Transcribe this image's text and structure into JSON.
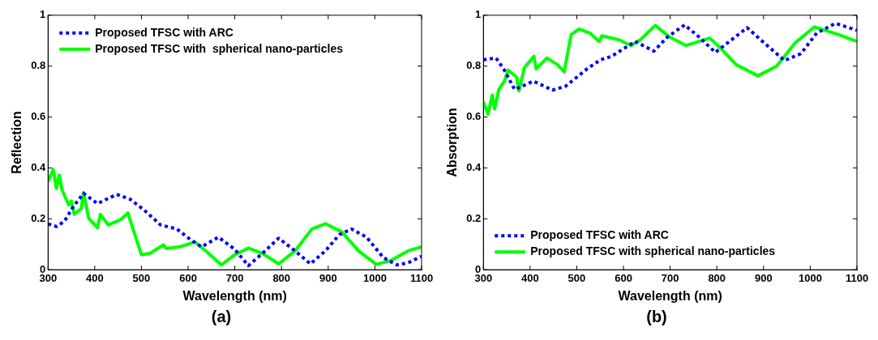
{
  "chart_data": [
    {
      "type": "line",
      "xlabel": "Wavelength (nm)",
      "ylabel": "Reflection",
      "annotations": [
        "(a)"
      ],
      "xlim": [
        300,
        1100
      ],
      "xticks": [
        300,
        400,
        500,
        600,
        700,
        800,
        900,
        1000,
        1100
      ],
      "ylim": [
        0,
        1
      ],
      "yticks": [
        0,
        0.2,
        0.4,
        0.6,
        0.8,
        1
      ],
      "grid": false,
      "legend": "top left",
      "marker": "none",
      "series": [
        {
          "name": "Proposed TFSC with ARC",
          "color": "#0000ff",
          "line_style": "dotted",
          "x": [
            300,
            318,
            335,
            353,
            376,
            406,
            447,
            476,
            506,
            541,
            576,
            606,
            629,
            665,
            700,
            729,
            759,
            794,
            829,
            862,
            894,
            924,
            950,
            982,
            1018,
            1047,
            1071,
            1100
          ],
          "values": [
            0.18,
            0.17,
            0.19,
            0.245,
            0.3,
            0.26,
            0.296,
            0.277,
            0.234,
            0.176,
            0.16,
            0.117,
            0.09,
            0.128,
            0.08,
            0.016,
            0.064,
            0.124,
            0.074,
            0.023,
            0.074,
            0.138,
            0.16,
            0.128,
            0.048,
            0.019,
            0.027,
            0.053
          ]
        },
        {
          "name": "Proposed TFSC with  spherical nano-particles",
          "color": "#00ff00",
          "line_style": "solid",
          "x": [
            300,
            311,
            318,
            324,
            330,
            344,
            350,
            356,
            371,
            376,
            387,
            406,
            412,
            429,
            456,
            471,
            482,
            500,
            518,
            547,
            553,
            582,
            615,
            641,
            671,
            700,
            729,
            759,
            794,
            829,
            865,
            894,
            929,
            965,
            1003,
            1035,
            1071,
            1100
          ],
          "values": [
            0.346,
            0.394,
            0.319,
            0.372,
            0.314,
            0.255,
            0.27,
            0.218,
            0.24,
            0.303,
            0.202,
            0.165,
            0.218,
            0.176,
            0.197,
            0.223,
            0.16,
            0.059,
            0.064,
            0.098,
            0.083,
            0.09,
            0.109,
            0.069,
            0.019,
            0.059,
            0.085,
            0.064,
            0.023,
            0.074,
            0.16,
            0.181,
            0.149,
            0.074,
            0.021,
            0.037,
            0.074,
            0.09
          ]
        }
      ]
    },
    {
      "type": "line",
      "xlabel": "Wavelength (nm)",
      "ylabel": "Absorption",
      "annotations": [
        "(b)"
      ],
      "xlim": [
        300,
        1100
      ],
      "xticks": [
        300,
        400,
        500,
        600,
        700,
        800,
        900,
        1000,
        1100
      ],
      "ylim": [
        0,
        1
      ],
      "yticks": [
        0,
        0.2,
        0.4,
        0.6,
        0.8,
        1
      ],
      "grid": false,
      "legend": "bottom left",
      "marker": "none",
      "series": [
        {
          "name": "Proposed TFSC with ARC",
          "color": "#0000ff",
          "line_style": "dotted",
          "x": [
            300,
            327,
            345,
            367,
            407,
            448,
            476,
            522,
            551,
            574,
            625,
            665,
            694,
            731,
            762,
            797,
            831,
            865,
            894,
            945,
            980,
            1014,
            1054,
            1100
          ],
          "values": [
            0.825,
            0.832,
            0.784,
            0.708,
            0.741,
            0.706,
            0.721,
            0.789,
            0.825,
            0.838,
            0.897,
            0.859,
            0.914,
            0.962,
            0.914,
            0.854,
            0.903,
            0.951,
            0.903,
            0.822,
            0.849,
            0.93,
            0.968,
            0.941
          ]
        },
        {
          "name": "Proposed TFSC with spherical nano-particles",
          "color": "#00ff00",
          "line_style": "solid",
          "x": [
            300,
            310,
            319,
            324,
            333,
            345,
            353,
            371,
            376,
            388,
            408,
            413,
            436,
            459,
            473,
            488,
            505,
            528,
            548,
            554,
            591,
            616,
            636,
            668,
            699,
            734,
            785,
            808,
            842,
            888,
            928,
            968,
            1009,
            1060,
            1100
          ],
          "values": [
            0.659,
            0.611,
            0.686,
            0.632,
            0.708,
            0.741,
            0.784,
            0.757,
            0.703,
            0.795,
            0.838,
            0.789,
            0.832,
            0.805,
            0.778,
            0.924,
            0.946,
            0.93,
            0.897,
            0.919,
            0.903,
            0.881,
            0.903,
            0.96,
            0.914,
            0.881,
            0.91,
            0.87,
            0.805,
            0.762,
            0.8,
            0.892,
            0.954,
            0.924,
            0.897
          ]
        }
      ]
    }
  ]
}
